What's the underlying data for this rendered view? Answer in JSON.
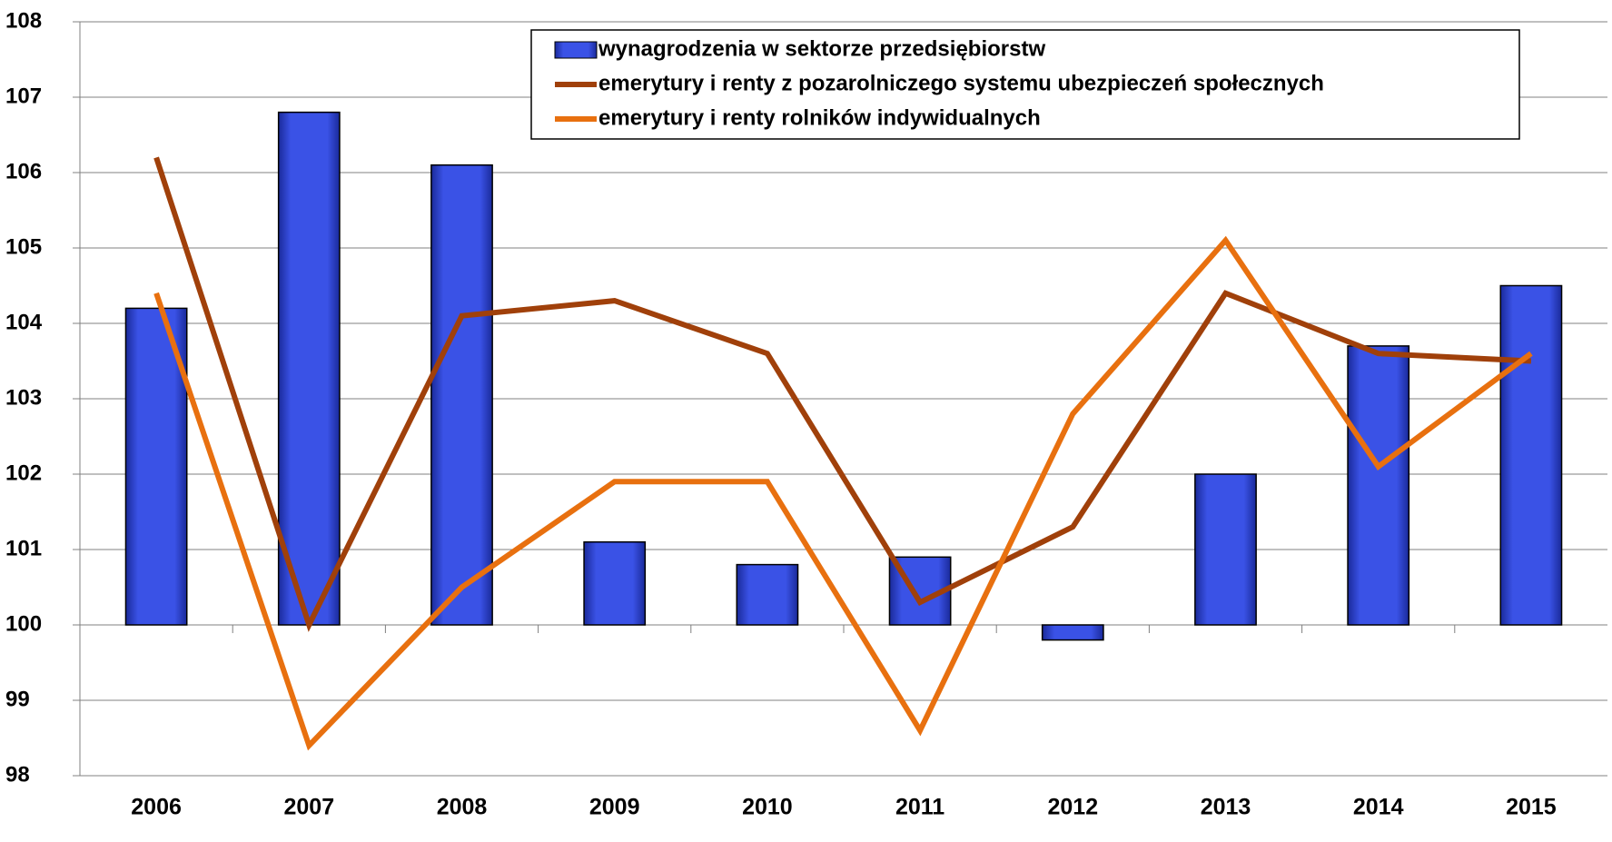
{
  "chart_data": {
    "type": "bar",
    "categories": [
      "2006",
      "2007",
      "2008",
      "2009",
      "2010",
      "2011",
      "2012",
      "2013",
      "2014",
      "2015"
    ],
    "series": [
      {
        "name": "wynagrodzenia w sektorze przedsiębiorstw",
        "type": "bar",
        "color": "#3a4fe0",
        "values": [
          104.2,
          106.8,
          106.1,
          101.1,
          100.8,
          100.9,
          99.8,
          102.0,
          103.7,
          104.5
        ]
      },
      {
        "name": "emerytury i renty z pozarolniczego systemu ubezpieczeń społecznych",
        "type": "line",
        "color": "#a0400a",
        "values": [
          106.2,
          100.0,
          104.1,
          104.3,
          103.6,
          100.3,
          101.3,
          104.4,
          103.6,
          103.5
        ]
      },
      {
        "name": "emerytury i renty rolników indywidualnych",
        "type": "line",
        "color": "#e8700f",
        "values": [
          104.4,
          98.4,
          100.5,
          101.9,
          101.9,
          98.6,
          102.8,
          105.1,
          102.1,
          103.6
        ]
      }
    ],
    "ylim": [
      98,
      108
    ],
    "yticks": [
      98,
      99,
      100,
      101,
      102,
      103,
      104,
      105,
      106,
      107,
      108
    ],
    "x_axis_at": 100,
    "grid": true,
    "legend": "top"
  }
}
